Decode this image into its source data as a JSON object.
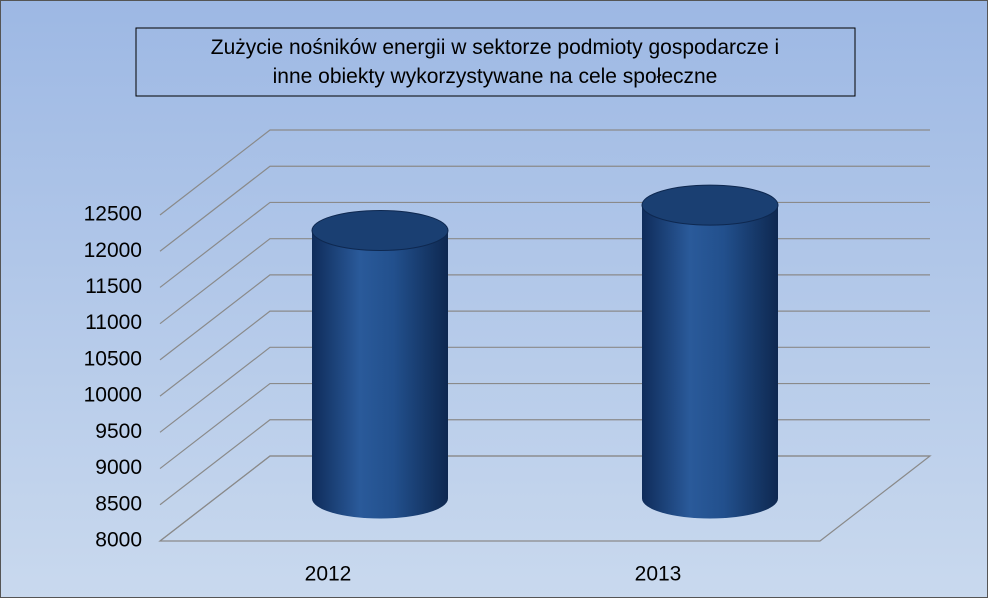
{
  "chart_data": {
    "type": "bar",
    "title": "Zużycie nośników energii w sektorze podmioty gospodarcze i inne obiekty wykorzystywane na cele społeczne",
    "categories": [
      "2012",
      "2013"
    ],
    "values": [
      11700,
      12050
    ],
    "color": "#1f4e8c",
    "ylim": [
      8000,
      12500
    ],
    "yticks": [
      8000,
      8500,
      9000,
      9500,
      10000,
      10500,
      11000,
      11500,
      12000,
      12500
    ],
    "grid": true
  }
}
